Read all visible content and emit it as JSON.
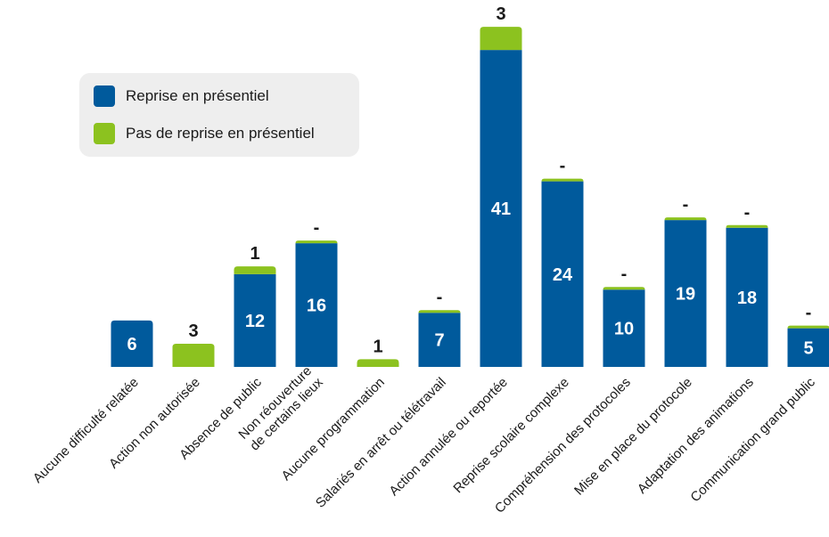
{
  "chart_data": {
    "type": "bar",
    "stacked": true,
    "categories": [
      [
        "Aucune difficulté relatée"
      ],
      [
        "Action non autorisée"
      ],
      [
        "Absence de public"
      ],
      [
        "Non réouverture",
        "de certains lieux"
      ],
      [
        "Aucune programmation"
      ],
      [
        "Salariés en arrêt ou télétravail"
      ],
      [
        "Action annulée ou reportée"
      ],
      [
        "Reprise scolaire complexe"
      ],
      [
        "Compréhension des protocoles"
      ],
      [
        "Mise en place du protocole"
      ],
      [
        "Adaptation des animations"
      ],
      [
        "Communication grand public"
      ]
    ],
    "series": [
      {
        "name": "Reprise en présentiel",
        "color": "#005a9c",
        "values": [
          6,
          0,
          12,
          16,
          0,
          7,
          41,
          24,
          10,
          19,
          18,
          5
        ],
        "labels": [
          "6",
          "",
          "12",
          "16",
          "",
          "7",
          "41",
          "24",
          "10",
          "19",
          "18",
          "5"
        ]
      },
      {
        "name": "Pas de reprise en présentiel",
        "color": "#8cc21f",
        "values": [
          0,
          3,
          1,
          0,
          1,
          0,
          3,
          0,
          0,
          0,
          0,
          0
        ],
        "labels": [
          "",
          "3",
          "1",
          "-",
          "1",
          "-",
          "3",
          "-",
          "-",
          "-",
          "-",
          "-"
        ]
      }
    ],
    "legend": "top-left",
    "grid": false
  }
}
